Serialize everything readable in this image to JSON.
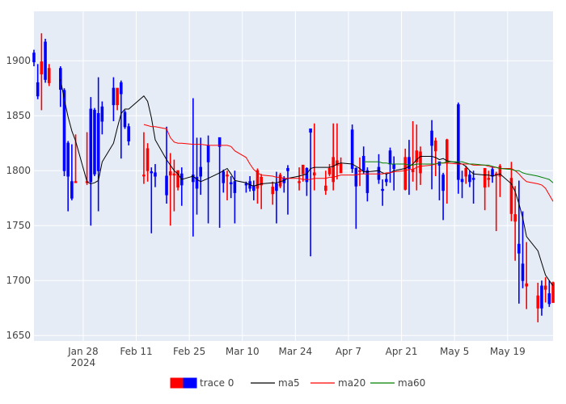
{
  "chart_data": {
    "type": "candlestick",
    "title": "",
    "xlabel": "",
    "ylabel": "",
    "ylim": [
      1645,
      1945
    ],
    "xlim": [
      "2024-01-15",
      "2024-05-31"
    ],
    "x_ticks": [
      {
        "date": "2024-01-28",
        "label": "Jan 28",
        "sublabel": "2024"
      },
      {
        "date": "2024-02-11",
        "label": "Feb 11",
        "sublabel": ""
      },
      {
        "date": "2024-02-25",
        "label": "Feb 25",
        "sublabel": ""
      },
      {
        "date": "2024-03-10",
        "label": "Mar 10",
        "sublabel": ""
      },
      {
        "date": "2024-03-24",
        "label": "Mar 24",
        "sublabel": ""
      },
      {
        "date": "2024-04-07",
        "label": "Apr 7",
        "sublabel": ""
      },
      {
        "date": "2024-04-21",
        "label": "Apr 21",
        "sublabel": ""
      },
      {
        "date": "2024-05-05",
        "label": "May 5",
        "sublabel": ""
      },
      {
        "date": "2024-05-19",
        "label": "May 19",
        "sublabel": ""
      }
    ],
    "y_ticks": [
      1650,
      1700,
      1750,
      1800,
      1850,
      1900
    ],
    "grid": true,
    "legend": {
      "position": "bottom",
      "orientation": "horizontal"
    },
    "colors": {
      "increasing": "#ff0000",
      "decreasing": "#0000ff",
      "ma5": "#000000",
      "ma20": "#ff0000",
      "ma60": "#008000",
      "plot_bg": "#e5ecf6",
      "grid": "#ffffff"
    },
    "candles": {
      "name": "trace 0",
      "dates": [
        "2024-01-15",
        "2024-01-16",
        "2024-01-17",
        "2024-01-18",
        "2024-01-19",
        "2024-01-22",
        "2024-01-23",
        "2024-01-24",
        "2024-01-25",
        "2024-01-26",
        "2024-01-29",
        "2024-01-30",
        "2024-01-31",
        "2024-02-01",
        "2024-02-02",
        "2024-02-05",
        "2024-02-06",
        "2024-02-07",
        "2024-02-08",
        "2024-02-09",
        "2024-02-13",
        "2024-02-14",
        "2024-02-15",
        "2024-02-16",
        "2024-02-19",
        "2024-02-20",
        "2024-02-21",
        "2024-02-22",
        "2024-02-23",
        "2024-02-26",
        "2024-02-27",
        "2024-02-28",
        "2024-03-01",
        "2024-03-04",
        "2024-03-05",
        "2024-03-06",
        "2024-03-07",
        "2024-03-08",
        "2024-03-11",
        "2024-03-12",
        "2024-03-13",
        "2024-03-14",
        "2024-03-15",
        "2024-03-18",
        "2024-03-19",
        "2024-03-20",
        "2024-03-21",
        "2024-03-22",
        "2024-03-25",
        "2024-03-26",
        "2024-03-27",
        "2024-03-28",
        "2024-03-29",
        "2024-04-01",
        "2024-04-02",
        "2024-04-03",
        "2024-04-04",
        "2024-04-05",
        "2024-04-08",
        "2024-04-09",
        "2024-04-10",
        "2024-04-11",
        "2024-04-12",
        "2024-04-15",
        "2024-04-16",
        "2024-04-17",
        "2024-04-18",
        "2024-04-19",
        "2024-04-22",
        "2024-04-23",
        "2024-04-24",
        "2024-04-25",
        "2024-04-26",
        "2024-04-29",
        "2024-04-30",
        "2024-05-01",
        "2024-05-02",
        "2024-05-03",
        "2024-05-06",
        "2024-05-07",
        "2024-05-08",
        "2024-05-09",
        "2024-05-10",
        "2024-05-13",
        "2024-05-14",
        "2024-05-15",
        "2024-05-16",
        "2024-05-17",
        "2024-05-20",
        "2024-05-21",
        "2024-05-22",
        "2024-05-23",
        "2024-05-24",
        "2024-05-27",
        "2024-05-28",
        "2024-05-29",
        "2024-05-30",
        "2024-05-31"
      ],
      "open": [
        1907,
        1880,
        1888,
        1917,
        1880,
        1893,
        1873,
        1825,
        1790,
        1790,
        1790,
        1856,
        1855,
        1852,
        1858,
        1875,
        1860,
        1880,
        1853,
        1840,
        1796,
        1800,
        1799,
        1798,
        1795,
        1796,
        1796,
        1785,
        1797,
        1796,
        1794,
        1803,
        1823,
        1830,
        1799,
        1796,
        1789,
        1790,
        1788,
        1790,
        1786,
        1784,
        1787,
        1779,
        1788,
        1786,
        1793,
        1802,
        1790,
        1797,
        1802,
        1838,
        1796,
        1782,
        1797,
        1790,
        1805,
        1798,
        1837,
        1802,
        1800,
        1813,
        1800,
        1803,
        1783,
        1792,
        1818,
        1806,
        1783,
        1812,
        1799,
        1808,
        1798,
        1836,
        1818,
        1808,
        1796,
        1807,
        1860,
        1792,
        1795,
        1796,
        1793,
        1785,
        1792,
        1801,
        1797,
        1795,
        1761,
        1754,
        1733,
        1715,
        1695,
        1675,
        1695,
        1692,
        1688,
        1680
      ],
      "close": [
        1899,
        1868,
        1899,
        1883,
        1893,
        1874,
        1800,
        1795,
        1775,
        1790,
        1790,
        1790,
        1797,
        1800,
        1845,
        1860,
        1875,
        1870,
        1840,
        1827,
        1796,
        1820,
        1798,
        1795,
        1778,
        1799,
        1797,
        1800,
        1787,
        1790,
        1784,
        1795,
        1808,
        1822,
        1789,
        1796,
        1788,
        1780,
        1787,
        1784,
        1782,
        1800,
        1794,
        1785,
        1782,
        1796,
        1789,
        1800,
        1790,
        1805,
        1790,
        1835,
        1798,
        1786,
        1802,
        1812,
        1809,
        1806,
        1802,
        1786,
        1800,
        1800,
        1780,
        1792,
        1782,
        1790,
        1806,
        1802,
        1812,
        1802,
        1801,
        1818,
        1817,
        1823,
        1827,
        1805,
        1782,
        1828,
        1792,
        1790,
        1802,
        1790,
        1792,
        1802,
        1793,
        1795,
        1797,
        1804,
        1793,
        1760,
        1725,
        1700,
        1697,
        1686,
        1675,
        1695,
        1679,
        1698
      ],
      "high": [
        1910,
        1897,
        1925,
        1920,
        1897,
        1895,
        1875,
        1827,
        1824,
        1833,
        1835,
        1867,
        1857,
        1885,
        1863,
        1885,
        1872,
        1882,
        1855,
        1843,
        1835,
        1825,
        1803,
        1806,
        1840,
        1816,
        1810,
        1795,
        1803,
        1866,
        1830,
        1830,
        1832,
        1830,
        1801,
        1800,
        1795,
        1800,
        1790,
        1795,
        1791,
        1802,
        1797,
        1790,
        1799,
        1798,
        1795,
        1805,
        1803,
        1796,
        1803,
        1838,
        1843,
        1800,
        1806,
        1843,
        1843,
        1812,
        1842,
        1803,
        1812,
        1822,
        1803,
        1815,
        1792,
        1797,
        1821,
        1813,
        1820,
        1828,
        1845,
        1842,
        1822,
        1846,
        1830,
        1808,
        1798,
        1829,
        1862,
        1800,
        1804,
        1800,
        1800,
        1802,
        1800,
        1804,
        1799,
        1806,
        1808,
        1786,
        1791,
        1763,
        1735,
        1698,
        1700,
        1703,
        1700,
        1699
      ],
      "low": [
        1895,
        1865,
        1855,
        1880,
        1877,
        1858,
        1795,
        1763,
        1773,
        1790,
        1787,
        1750,
        1795,
        1763,
        1833,
        1845,
        1855,
        1811,
        1838,
        1823,
        1788,
        1790,
        1743,
        1785,
        1770,
        1750,
        1763,
        1782,
        1768,
        1740,
        1760,
        1778,
        1752,
        1748,
        1780,
        1773,
        1775,
        1752,
        1780,
        1781,
        1773,
        1770,
        1765,
        1769,
        1752,
        1784,
        1780,
        1760,
        1782,
        1790,
        1777,
        1722,
        1782,
        1778,
        1795,
        1782,
        1792,
        1798,
        1798,
        1747,
        1786,
        1797,
        1772,
        1788,
        1768,
        1786,
        1789,
        1782,
        1782,
        1778,
        1790,
        1782,
        1787,
        1783,
        1795,
        1773,
        1755,
        1770,
        1779,
        1775,
        1788,
        1785,
        1770,
        1764,
        1785,
        1789,
        1745,
        1776,
        1754,
        1718,
        1679,
        1693,
        1674,
        1662,
        1668,
        1680,
        1676,
        1680
      ]
    },
    "series": [
      {
        "name": "ma5",
        "dates": [
          "2024-01-22",
          "2024-01-23",
          "2024-01-24",
          "2024-01-25",
          "2024-01-26",
          "2024-01-29",
          "2024-01-30",
          "2024-01-31",
          "2024-02-01",
          "2024-02-02",
          "2024-02-05",
          "2024-02-06",
          "2024-02-07",
          "2024-02-08",
          "2024-02-09",
          "2024-02-13",
          "2024-02-14",
          "2024-02-15",
          "2024-02-16",
          "2024-02-19",
          "2024-02-20",
          "2024-02-21",
          "2024-02-22",
          "2024-02-23",
          "2024-02-26",
          "2024-02-27",
          "2024-02-28",
          "2024-03-01",
          "2024-03-04",
          "2024-03-05",
          "2024-03-06",
          "2024-03-07",
          "2024-03-08",
          "2024-03-11",
          "2024-03-12",
          "2024-03-13",
          "2024-03-14",
          "2024-03-15",
          "2024-03-18",
          "2024-03-19",
          "2024-03-20",
          "2024-03-21",
          "2024-03-22",
          "2024-03-25",
          "2024-03-26",
          "2024-03-27",
          "2024-03-28",
          "2024-03-29",
          "2024-04-01",
          "2024-04-02",
          "2024-04-03",
          "2024-04-04",
          "2024-04-05",
          "2024-04-08",
          "2024-04-09",
          "2024-04-10",
          "2024-04-11",
          "2024-04-12",
          "2024-04-15",
          "2024-04-16",
          "2024-04-17",
          "2024-04-18",
          "2024-04-19",
          "2024-04-22",
          "2024-04-23",
          "2024-04-24",
          "2024-04-25",
          "2024-04-26",
          "2024-04-29",
          "2024-04-30",
          "2024-05-01",
          "2024-05-02",
          "2024-05-03",
          "2024-05-06",
          "2024-05-07",
          "2024-05-08",
          "2024-05-09",
          "2024-05-10",
          "2024-05-13",
          "2024-05-14",
          "2024-05-15",
          "2024-05-16",
          "2024-05-17",
          "2024-05-20",
          "2024-05-21",
          "2024-05-22",
          "2024-05-23",
          "2024-05-24",
          "2024-05-27",
          "2024-05-28",
          "2024-05-29",
          "2024-05-30",
          "2024-05-31"
        ],
        "values": [
          1883,
          1865,
          1849,
          1836,
          1827,
          1790,
          1788,
          1789,
          1791,
          1808,
          1825,
          1839,
          1852,
          1856,
          1856,
          1868,
          1863,
          1848,
          1828,
          1810,
          1805,
          1800,
          1797,
          1792,
          1795,
          1792,
          1790,
          1793,
          1798,
          1800,
          1802,
          1797,
          1791,
          1789,
          1787,
          1786,
          1787,
          1788,
          1789,
          1789,
          1790,
          1791,
          1793,
          1795,
          1796,
          1797,
          1802,
          1803,
          1803,
          1803,
          1804,
          1806,
          1807,
          1806,
          1804,
          1802,
          1799,
          1799,
          1800,
          1798,
          1797,
          1798,
          1800,
          1802,
          1804,
          1806,
          1810,
          1813,
          1813,
          1812,
          1810,
          1811,
          1809,
          1807,
          1806,
          1804,
          1800,
          1797,
          1796,
          1796,
          1795,
          1796,
          1797,
          1788,
          1781,
          1770,
          1757,
          1740,
          1727,
          1716,
          1705,
          1700,
          1695
        ]
      },
      {
        "name": "ma20",
        "dates": [
          "2024-02-13",
          "2024-02-14",
          "2024-02-15",
          "2024-02-16",
          "2024-02-19",
          "2024-02-20",
          "2024-02-21",
          "2024-02-22",
          "2024-02-23",
          "2024-02-26",
          "2024-02-27",
          "2024-02-28",
          "2024-03-01",
          "2024-03-04",
          "2024-03-05",
          "2024-03-06",
          "2024-03-07",
          "2024-03-08",
          "2024-03-11",
          "2024-03-12",
          "2024-03-13",
          "2024-03-14",
          "2024-03-15",
          "2024-03-18",
          "2024-03-19",
          "2024-03-20",
          "2024-03-21",
          "2024-03-22",
          "2024-03-25",
          "2024-03-26",
          "2024-03-27",
          "2024-03-28",
          "2024-03-29",
          "2024-04-01",
          "2024-04-02",
          "2024-04-03",
          "2024-04-04",
          "2024-04-05",
          "2024-04-08",
          "2024-04-09",
          "2024-04-10",
          "2024-04-11",
          "2024-04-12",
          "2024-04-15",
          "2024-04-16",
          "2024-04-17",
          "2024-04-18",
          "2024-04-19",
          "2024-04-22",
          "2024-04-23",
          "2024-04-24",
          "2024-04-25",
          "2024-04-26",
          "2024-04-29",
          "2024-04-30",
          "2024-05-01",
          "2024-05-02",
          "2024-05-03",
          "2024-05-06",
          "2024-05-07",
          "2024-05-08",
          "2024-05-09",
          "2024-05-10",
          "2024-05-13",
          "2024-05-14",
          "2024-05-15",
          "2024-05-16",
          "2024-05-17",
          "2024-05-20",
          "2024-05-21",
          "2024-05-22",
          "2024-05-23",
          "2024-05-24",
          "2024-05-27",
          "2024-05-28",
          "2024-05-29",
          "2024-05-30",
          "2024-05-31"
        ],
        "values": [
          1842,
          1841,
          1840,
          1840,
          1838,
          1830,
          1826,
          1825,
          1825,
          1824,
          1824,
          1824,
          1823,
          1823,
          1823,
          1823,
          1822,
          1818,
          1812,
          1806,
          1801,
          1798,
          1796,
          1795,
          1794,
          1794,
          1793,
          1793,
          1793,
          1792,
          1792,
          1792,
          1793,
          1793,
          1794,
          1794,
          1795,
          1796,
          1796,
          1796,
          1797,
          1797,
          1797,
          1797,
          1797,
          1798,
          1798,
          1799,
          1800,
          1801,
          1801,
          1803,
          1804,
          1805,
          1806,
          1807,
          1807,
          1807,
          1806,
          1806,
          1806,
          1806,
          1805,
          1805,
          1804,
          1803,
          1803,
          1802,
          1802,
          1800,
          1797,
          1793,
          1790,
          1788,
          1787,
          1784,
          1778,
          1772
        ]
      },
      {
        "name": "ma60",
        "dates": [
          "2024-04-11",
          "2024-04-12",
          "2024-04-15",
          "2024-04-16",
          "2024-04-17",
          "2024-04-18",
          "2024-04-19",
          "2024-04-22",
          "2024-04-23",
          "2024-04-24",
          "2024-04-25",
          "2024-04-26",
          "2024-04-29",
          "2024-04-30",
          "2024-05-01",
          "2024-05-02",
          "2024-05-03",
          "2024-05-06",
          "2024-05-07",
          "2024-05-08",
          "2024-05-09",
          "2024-05-10",
          "2024-05-13",
          "2024-05-14",
          "2024-05-15",
          "2024-05-16",
          "2024-05-17",
          "2024-05-20",
          "2024-05-21",
          "2024-05-22",
          "2024-05-23",
          "2024-05-24",
          "2024-05-27",
          "2024-05-28",
          "2024-05-29",
          "2024-05-30",
          "2024-05-31"
        ],
        "values": [
          1808,
          1808,
          1808,
          1807,
          1807,
          1806,
          1806,
          1806,
          1805,
          1805,
          1806,
          1806,
          1806,
          1806,
          1807,
          1807,
          1808,
          1808,
          1808,
          1807,
          1806,
          1806,
          1805,
          1805,
          1804,
          1803,
          1802,
          1801,
          1800,
          1800,
          1798,
          1797,
          1795,
          1794,
          1793,
          1792,
          1789
        ]
      }
    ]
  }
}
